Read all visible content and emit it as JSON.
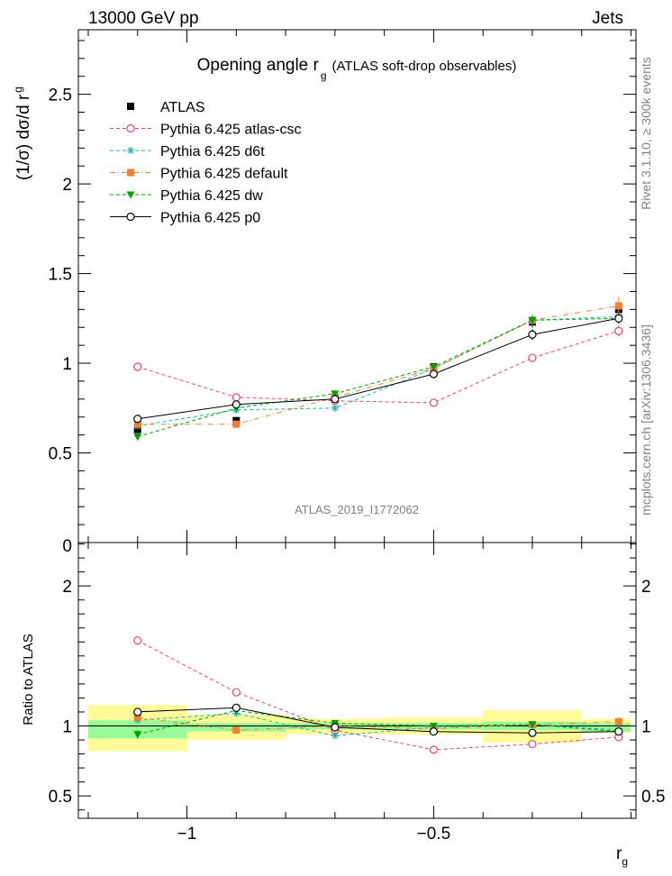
{
  "header": {
    "left": "13000 GeV pp",
    "right": "Jets"
  },
  "side_labels": {
    "rivet": "Rivet 3.1.10, ≥ 300k events",
    "mcplots": "mcplots.cern.ch [arXiv:1306.3436]"
  },
  "chart_data": [
    {
      "type": "line",
      "title": "Opening angle r",
      "title_sub": "g",
      "title_tail": "(ATLAS soft-drop observables)",
      "watermark": "ATLAS_2019_I1772062",
      "ylabel": "(1/σ) dσ/d r",
      "ylabel_sub": "g",
      "xlim": [
        -1.22,
        -0.09
      ],
      "ylim": [
        0,
        2.86
      ],
      "yticks": [
        {
          "v": 0.5,
          "label": "0.5"
        },
        {
          "v": 1,
          "label": "1"
        },
        {
          "v": 1.5,
          "label": "1.5"
        },
        {
          "v": 2,
          "label": "2"
        },
        {
          "v": 2.5,
          "label": "2.5"
        }
      ],
      "y_zero_label": "0",
      "grid": false,
      "legend_position": "top-left",
      "x": [
        -1.1,
        -0.9,
        -0.7,
        -0.5,
        -0.3,
        -0.125
      ],
      "series": [
        {
          "name": "ATLAS",
          "color": "#000000",
          "marker": "square-filled",
          "line": "none",
          "values": [
            0.63,
            0.68,
            0.81,
            0.98,
            1.23,
            1.3
          ],
          "errors": [
            0.02,
            0.02,
            0.02,
            0.02,
            0.03,
            0.04
          ]
        },
        {
          "name": "Pythia 6.425 atlas-csc",
          "color": "#e5476d",
          "marker": "circle-open",
          "line": "dashed",
          "values": [
            0.98,
            0.81,
            0.79,
            0.78,
            1.03,
            1.18
          ],
          "errors": [
            0.02,
            0.02,
            0.02,
            0.02,
            0.02,
            0.03
          ]
        },
        {
          "name": "Pythia 6.425 d6t",
          "color": "#20b2aa",
          "marker": "star",
          "line": "dashed",
          "values": [
            0.65,
            0.74,
            0.75,
            0.97,
            1.24,
            1.26
          ],
          "errors": [
            0.02,
            0.02,
            0.02,
            0.02,
            0.03,
            0.03
          ]
        },
        {
          "name": "Pythia 6.425 default",
          "color": "#f28030",
          "marker": "square-filled",
          "line": "dashdot",
          "values": [
            0.66,
            0.66,
            0.81,
            0.97,
            1.24,
            1.32
          ],
          "errors": [
            0.02,
            0.02,
            0.02,
            0.02,
            0.03,
            0.05
          ]
        },
        {
          "name": "Pythia 6.425 dw",
          "color": "#00a000",
          "marker": "triangle-down-filled",
          "line": "dashed",
          "values": [
            0.59,
            0.75,
            0.83,
            0.98,
            1.24,
            1.25
          ],
          "errors": [
            0.02,
            0.02,
            0.02,
            0.02,
            0.03,
            0.03
          ]
        },
        {
          "name": "Pythia 6.425 p0",
          "color": "#000000",
          "marker": "circle-open",
          "line": "solid",
          "values": [
            0.69,
            0.77,
            0.8,
            0.94,
            1.16,
            1.25
          ],
          "errors": [
            0.02,
            0.02,
            0.02,
            0.02,
            0.03,
            0.03
          ]
        }
      ]
    },
    {
      "type": "line",
      "ylabel": "Ratio to ATLAS",
      "xlabel": "r",
      "xlabel_sub": "g",
      "xlim": [
        -1.22,
        -0.09
      ],
      "ylim": [
        0.34,
        2.31
      ],
      "xticks": [
        {
          "v": -1,
          "label": "−1"
        },
        {
          "v": -0.5,
          "label": "−0.5"
        }
      ],
      "yticks": [
        {
          "v": 0.5,
          "label": "0.5"
        },
        {
          "v": 1,
          "label": "1"
        },
        {
          "v": 2,
          "label": "2"
        }
      ],
      "reference_bands": [
        {
          "x0": -1.2,
          "x1": -1.0,
          "stat": [
            0.91,
            1.04
          ],
          "total": [
            0.82,
            1.15
          ]
        },
        {
          "x0": -1.0,
          "x1": -0.8,
          "stat": [
            0.96,
            1.02
          ],
          "total": [
            0.9,
            1.08
          ]
        },
        {
          "x0": -0.8,
          "x1": -0.6,
          "stat": [
            0.975,
            1.02
          ],
          "total": [
            0.94,
            1.05
          ]
        },
        {
          "x0": -0.6,
          "x1": -0.4,
          "stat": [
            0.975,
            1.02
          ],
          "total": [
            0.94,
            1.06
          ]
        },
        {
          "x0": -0.4,
          "x1": -0.2,
          "stat": [
            0.97,
            1.03
          ],
          "total": [
            0.88,
            1.11
          ]
        },
        {
          "x0": -0.2,
          "x1": -0.1,
          "stat": [
            0.96,
            1.02
          ],
          "total": [
            0.95,
            1.05
          ]
        }
      ],
      "band_colors": {
        "stat": "#98fb98",
        "total": "#fffb98"
      },
      "x": [
        -1.1,
        -0.9,
        -0.7,
        -0.5,
        -0.3,
        -0.125
      ],
      "series": [
        {
          "name": "Pythia 6.425 atlas-csc",
          "color": "#e5476d",
          "marker": "circle-open",
          "line": "dashed",
          "values": [
            1.61,
            1.24,
            0.97,
            0.83,
            0.87,
            0.92
          ],
          "errors": [
            0.02,
            0.02,
            0.02,
            0.02,
            0.02,
            0.02
          ]
        },
        {
          "name": "Pythia 6.425 d6t",
          "color": "#20b2aa",
          "marker": "star",
          "line": "dashed",
          "values": [
            1.04,
            1.09,
            0.93,
            0.99,
            1.01,
            0.97
          ],
          "errors": [
            0.02,
            0.02,
            0.02,
            0.02,
            0.02,
            0.02
          ]
        },
        {
          "name": "Pythia 6.425 default",
          "color": "#f28030",
          "marker": "square-filled",
          "line": "dashdot",
          "values": [
            1.06,
            0.97,
            1.0,
            0.98,
            1.01,
            1.03
          ],
          "errors": [
            0.02,
            0.02,
            0.02,
            0.02,
            0.02,
            0.03
          ]
        },
        {
          "name": "Pythia 6.425 dw",
          "color": "#00a000",
          "marker": "triangle-down-filled",
          "line": "dashed",
          "values": [
            0.94,
            1.11,
            1.02,
            1.0,
            1.01,
            0.96
          ],
          "errors": [
            0.03,
            0.02,
            0.02,
            0.02,
            0.02,
            0.02
          ]
        },
        {
          "name": "Pythia 6.425 p0",
          "color": "#000000",
          "marker": "circle-open",
          "line": "solid",
          "values": [
            1.1,
            1.13,
            0.99,
            0.96,
            0.95,
            0.96
          ],
          "errors": [
            0.02,
            0.02,
            0.02,
            0.02,
            0.02,
            0.02
          ]
        }
      ]
    }
  ]
}
